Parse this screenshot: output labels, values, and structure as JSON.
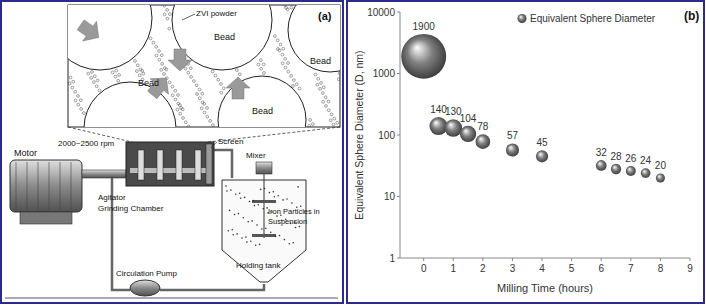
{
  "diagram": {
    "panel_label": "(a)",
    "inset": {
      "powder_label": "ZVI powder",
      "bead_labels": [
        "Bead",
        "Bead",
        "Bead",
        "Bead"
      ]
    },
    "labels": {
      "motor": "Motor",
      "speed": "2000~2500 rpm",
      "screen": "Screen",
      "mixer": "Mixer",
      "agitator": "Agitator",
      "chamber": "Grinding Chamber",
      "suspension": [
        "Iron Particles in",
        "Suspension"
      ],
      "tank": "Holding tank",
      "pump": "Circulation Pump"
    }
  },
  "chart_data": {
    "type": "scatter",
    "panel_label": "(b)",
    "x_label": "Milling Time (hours)",
    "y_label": "Equivalent Sphere Diameter (D, nm)",
    "x": [
      0,
      0.5,
      1,
      1.5,
      2,
      3,
      4,
      6,
      6.5,
      7,
      7.5,
      8
    ],
    "series": [
      {
        "name": "Equivalent Sphere Diameter",
        "color": "#808080",
        "marker": "sphere",
        "values": [
          1900,
          140,
          130,
          104,
          78,
          57,
          45,
          32,
          28,
          26,
          24,
          20
        ]
      }
    ],
    "xlim": [
      -0.8,
      9
    ],
    "xticks": [
      0,
      1,
      2,
      3,
      4,
      5,
      6,
      7,
      8,
      9
    ],
    "ylim": [
      1,
      10000
    ],
    "yticks": [
      1,
      10,
      100,
      1000,
      10000
    ],
    "log": "y",
    "grid": false,
    "legend": "upper right",
    "data_labels": true
  }
}
